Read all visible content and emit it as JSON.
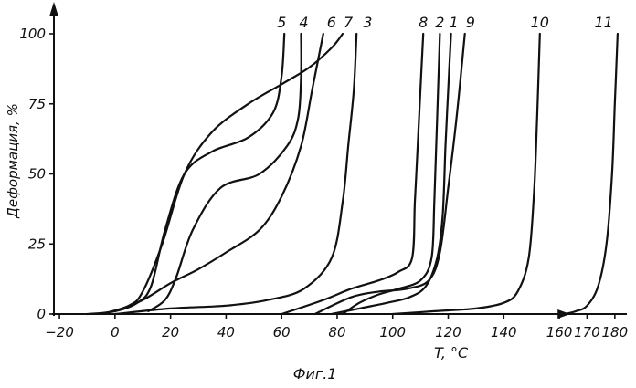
{
  "chart_data": {
    "type": "line",
    "ylabel": "Деформация, %",
    "xlabel": "T, °C",
    "caption": "Фиг.1",
    "xticks": [
      {
        "v": -20,
        "label": "−20"
      },
      {
        "v": 0,
        "label": "0"
      },
      {
        "v": 20,
        "label": "20"
      },
      {
        "v": 40,
        "label": "40"
      },
      {
        "v": 60,
        "label": "60"
      },
      {
        "v": 80,
        "label": "80"
      },
      {
        "v": 100,
        "label": "100"
      },
      {
        "v": 120,
        "label": "120"
      },
      {
        "v": 140,
        "label": "140"
      },
      {
        "v": 160,
        "label": "160"
      },
      {
        "v": 170,
        "label": "170"
      },
      {
        "v": 180,
        "label": "180"
      }
    ],
    "yticks": [
      {
        "v": 0,
        "label": "0"
      },
      {
        "v": 25,
        "label": "25"
      },
      {
        "v": 50,
        "label": "50"
      },
      {
        "v": 75,
        "label": "75"
      },
      {
        "v": 100,
        "label": "100"
      }
    ],
    "series": [
      {
        "name": "5",
        "points": [
          [
            -10,
            0
          ],
          [
            0,
            1
          ],
          [
            8,
            4
          ],
          [
            13,
            10
          ],
          [
            18,
            30
          ],
          [
            25,
            50
          ],
          [
            35,
            58
          ],
          [
            48,
            63
          ],
          [
            57,
            72
          ],
          [
            60,
            85
          ],
          [
            61,
            100
          ]
        ]
      },
      {
        "name": "4",
        "points": [
          [
            12,
            1
          ],
          [
            18,
            5
          ],
          [
            22,
            13
          ],
          [
            28,
            30
          ],
          [
            38,
            45
          ],
          [
            52,
            50
          ],
          [
            62,
            60
          ],
          [
            66,
            70
          ],
          [
            67,
            85
          ],
          [
            67,
            100
          ]
        ]
      },
      {
        "name": "6",
        "points": [
          [
            -5,
            0
          ],
          [
            5,
            3
          ],
          [
            10,
            8
          ],
          [
            17,
            25
          ],
          [
            25,
            50
          ],
          [
            35,
            65
          ],
          [
            48,
            75
          ],
          [
            60,
            82
          ],
          [
            70,
            88
          ],
          [
            78,
            95
          ],
          [
            82,
            100
          ]
        ]
      },
      {
        "name": "7",
        "points": [
          [
            0,
            1
          ],
          [
            10,
            5
          ],
          [
            20,
            11
          ],
          [
            30,
            16
          ],
          [
            40,
            22
          ],
          [
            52,
            30
          ],
          [
            60,
            42
          ],
          [
            67,
            60
          ],
          [
            71,
            80
          ],
          [
            75,
            100
          ]
        ]
      },
      {
        "name": "3",
        "points": [
          [
            0,
            0
          ],
          [
            20,
            2
          ],
          [
            40,
            3
          ],
          [
            55,
            5
          ],
          [
            68,
            9
          ],
          [
            78,
            20
          ],
          [
            82,
            40
          ],
          [
            84,
            60
          ],
          [
            86,
            80
          ],
          [
            87,
            100
          ]
        ]
      },
      {
        "name": "8",
        "points": [
          [
            60,
            0
          ],
          [
            75,
            5
          ],
          [
            85,
            9
          ],
          [
            95,
            12
          ],
          [
            102,
            15
          ],
          [
            107,
            20
          ],
          [
            108,
            40
          ],
          [
            109,
            60
          ],
          [
            110,
            80
          ],
          [
            111,
            100
          ]
        ]
      },
      {
        "name": "2",
        "points": [
          [
            82,
            0
          ],
          [
            88,
            4
          ],
          [
            95,
            7
          ],
          [
            102,
            9
          ],
          [
            110,
            12
          ],
          [
            114,
            20
          ],
          [
            115,
            40
          ],
          [
            116,
            70
          ],
          [
            117,
            100
          ]
        ]
      },
      {
        "name": "1",
        "points": [
          [
            78,
            0
          ],
          [
            88,
            2
          ],
          [
            98,
            4
          ],
          [
            106,
            6
          ],
          [
            112,
            10
          ],
          [
            116,
            20
          ],
          [
            118,
            35
          ],
          [
            119,
            60
          ],
          [
            120,
            80
          ],
          [
            121,
            100
          ]
        ]
      },
      {
        "name": "9",
        "points": [
          [
            72,
            0
          ],
          [
            85,
            6
          ],
          [
            95,
            8
          ],
          [
            105,
            9
          ],
          [
            113,
            12
          ],
          [
            117,
            22
          ],
          [
            120,
            45
          ],
          [
            123,
            70
          ],
          [
            126,
            100
          ]
        ]
      },
      {
        "name": "10",
        "points": [
          [
            100,
            0
          ],
          [
            115,
            1
          ],
          [
            130,
            2
          ],
          [
            140,
            4
          ],
          [
            145,
            8
          ],
          [
            149,
            20
          ],
          [
            151,
            45
          ],
          [
            152,
            70
          ],
          [
            153,
            100
          ]
        ]
      },
      {
        "name": "11",
        "points": [
          [
            162,
            0
          ],
          [
            166,
            1
          ],
          [
            170,
            3
          ],
          [
            174,
            10
          ],
          [
            177,
            25
          ],
          [
            179,
            50
          ],
          [
            180,
            75
          ],
          [
            181,
            100
          ]
        ]
      }
    ],
    "labels": [
      {
        "name": "5",
        "x": 60,
        "y": 107
      },
      {
        "name": "4",
        "x": 68,
        "y": 107
      },
      {
        "name": "6",
        "x": 78,
        "y": 107
      },
      {
        "name": "7",
        "x": 84,
        "y": 107
      },
      {
        "name": "3",
        "x": 91,
        "y": 107
      },
      {
        "name": "8",
        "x": 111,
        "y": 107
      },
      {
        "name": "2",
        "x": 117,
        "y": 107
      },
      {
        "name": "1",
        "x": 122,
        "y": 107
      },
      {
        "name": "9",
        "x": 128,
        "y": 107
      },
      {
        "name": "10",
        "x": 153,
        "y": 107
      },
      {
        "name": "11",
        "x": 176,
        "y": 107
      }
    ]
  }
}
